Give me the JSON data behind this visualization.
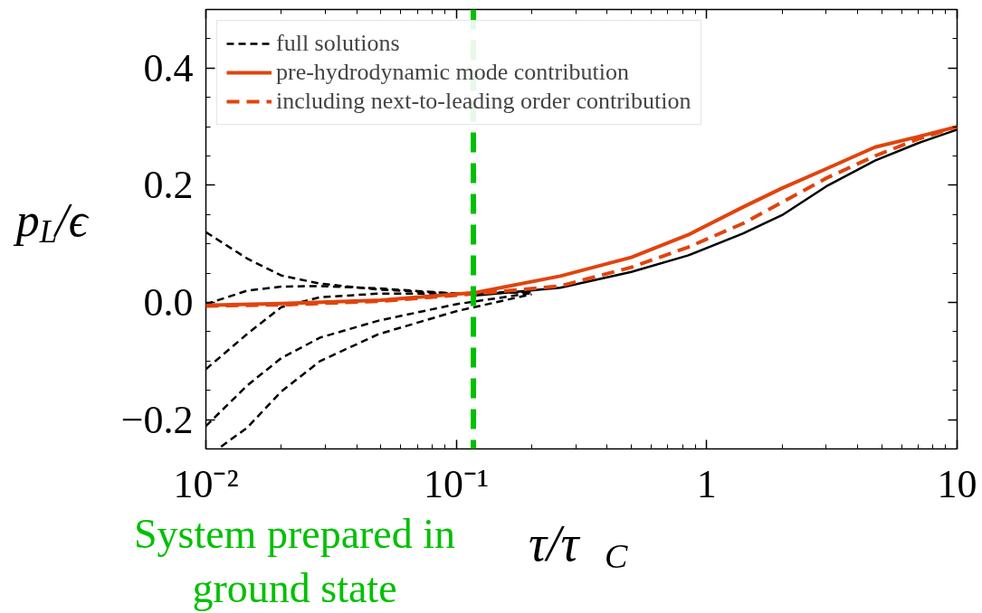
{
  "chart_data": {
    "type": "line",
    "xlabel": "τ/τ$_{C}$",
    "ylabel": "p$_{L}$/ϵ",
    "xlim": [
      0.01,
      10
    ],
    "ylim": [
      -0.25,
      0.5
    ],
    "log": "x",
    "grid": false,
    "legend": "top left",
    "xticks": [
      {
        "value": 0.01,
        "label": "10⁻²"
      },
      {
        "value": 0.1,
        "label": "10⁻¹"
      },
      1,
      10
    ],
    "yticks": [
      {
        "value": -0.2,
        "label": "−0.2"
      },
      {
        "value": 0,
        "label": "0.0"
      },
      {
        "value": 0.2,
        "label": "0.2"
      },
      {
        "value": 0.4,
        "label": "0.4"
      }
    ],
    "ref_lines": [
      {
        "axis": "x",
        "value": 0.117,
        "label": "System prepared in ground state",
        "color": "#00c000",
        "line_style": "dashed"
      }
    ],
    "series": [
      {
        "name": "full solutions",
        "color": "#000000",
        "line_style": "dashed",
        "x": [
          0.01,
          0.0146,
          0.02,
          0.0286,
          0.049,
          0.1,
          0.2
        ],
        "values": [
          0.12,
          0.075,
          0.046,
          0.032,
          0.022,
          0.015,
          0.018
        ]
      },
      {
        "color": "#000000",
        "line_style": "dashed",
        "x": [
          0.01,
          0.0146,
          0.02,
          0.0286,
          0.049,
          0.1,
          0.2
        ],
        "values": [
          -0.003,
          0.02,
          0.027,
          0.028,
          0.024,
          0.015,
          0.018
        ]
      },
      {
        "color": "#000000",
        "line_style": "dashed",
        "x": [
          0.01,
          0.0146,
          0.02,
          0.0286,
          0.049,
          0.1,
          0.2
        ],
        "values": [
          -0.114,
          -0.054,
          -0.008,
          0.009,
          0.015,
          0.015,
          0.018
        ]
      },
      {
        "color": "#000000",
        "line_style": "dashed",
        "x": [
          0.01,
          0.0146,
          0.02,
          0.0286,
          0.049,
          0.1,
          0.2
        ],
        "values": [
          -0.211,
          -0.142,
          -0.095,
          -0.06,
          -0.031,
          -0.003,
          0.016
        ]
      },
      {
        "color": "#000000",
        "line_style": "dashed",
        "x": [
          0.0115,
          0.0146,
          0.02,
          0.0286,
          0.049,
          0.1,
          0.2
        ],
        "values": [
          -0.246,
          -0.214,
          -0.152,
          -0.1,
          -0.054,
          -0.015,
          0.014
        ]
      },
      {
        "color": "#000000",
        "line_style": "solid",
        "x": [
          0.12,
          0.26,
          0.5,
          0.84,
          1.4,
          2,
          3,
          4.7,
          7,
          10
        ],
        "values": [
          0.012,
          0.025,
          0.052,
          0.08,
          0.118,
          0.149,
          0.198,
          0.242,
          0.272,
          0.295
        ]
      },
      {
        "name": "pre-hydrodynamic mode contribution",
        "color": "#e0440e",
        "line_style": "solid",
        "x": [
          0.01,
          0.02,
          0.05,
          0.12,
          0.26,
          0.5,
          0.84,
          1.4,
          2,
          3,
          4.7,
          7,
          10
        ],
        "values": [
          -0.005,
          -0.002,
          0.004,
          0.017,
          0.045,
          0.077,
          0.115,
          0.163,
          0.195,
          0.228,
          0.265,
          0.283,
          0.3
        ]
      },
      {
        "name": "including next-to-leading order contribution",
        "color": "#e0440e",
        "line_style": "dashed",
        "x": [
          0.01,
          0.02,
          0.05,
          0.12,
          0.26,
          0.5,
          0.84,
          1.4,
          2,
          3,
          4.7,
          7,
          10
        ],
        "values": [
          -0.006,
          -0.004,
          0.002,
          0.015,
          0.028,
          0.06,
          0.094,
          0.135,
          0.171,
          0.212,
          0.25,
          0.279,
          0.3
        ]
      }
    ]
  }
}
